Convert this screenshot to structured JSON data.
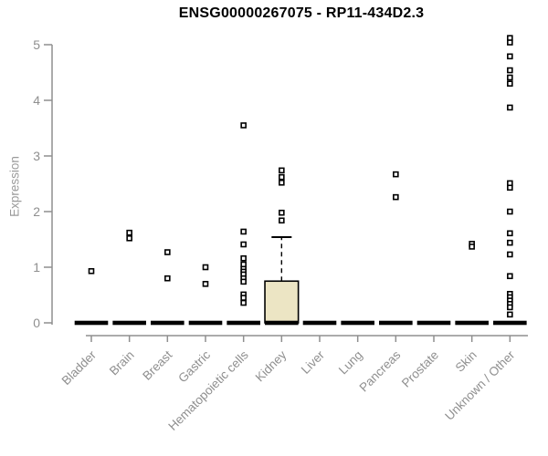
{
  "chart_data": {
    "type": "boxplot",
    "title": "ENSG00000267075 - RP11-434D2.3",
    "ylabel": "Expression",
    "xlabel": "",
    "ylim": [
      0,
      5
    ],
    "yticks": [
      0,
      1,
      2,
      3,
      4,
      5
    ],
    "grid": false,
    "legend_position": "none",
    "categories": [
      "Bladder",
      "Brain",
      "Breast",
      "Gastric",
      "Hematopoietic cells",
      "Kidney",
      "Liver",
      "Lung",
      "Pancreas",
      "Prostate",
      "Skin",
      "Unknown / Other"
    ],
    "boxes": [
      {
        "category": "Bladder",
        "q1": 0,
        "median": 0,
        "q3": 0,
        "whisker_low": 0,
        "whisker_high": 0,
        "outliers": [
          0.93
        ]
      },
      {
        "category": "Brain",
        "q1": 0,
        "median": 0,
        "q3": 0,
        "whisker_low": 0,
        "whisker_high": 0,
        "outliers": [
          1.62,
          1.52
        ]
      },
      {
        "category": "Breast",
        "q1": 0,
        "median": 0,
        "q3": 0,
        "whisker_low": 0,
        "whisker_high": 0,
        "outliers": [
          1.27,
          0.8
        ]
      },
      {
        "category": "Gastric",
        "q1": 0,
        "median": 0,
        "q3": 0,
        "whisker_low": 0,
        "whisker_high": 0,
        "outliers": [
          1.0,
          0.7
        ]
      },
      {
        "category": "Hematopoietic cells",
        "q1": 0,
        "median": 0,
        "q3": 0,
        "whisker_low": 0,
        "whisker_high": 0,
        "outliers": [
          3.55,
          1.64,
          1.41,
          1.16,
          1.05,
          0.97,
          0.92,
          0.87,
          0.8,
          0.74,
          0.51,
          0.45,
          0.36
        ]
      },
      {
        "category": "Kidney",
        "q1": 0,
        "median": 0,
        "q3": 0.75,
        "whisker_low": 0,
        "whisker_high": 1.54,
        "outliers": [
          2.74,
          2.62,
          2.52,
          1.98,
          1.84
        ]
      },
      {
        "category": "Liver",
        "q1": 0,
        "median": 0,
        "q3": 0,
        "whisker_low": 0,
        "whisker_high": 0,
        "outliers": []
      },
      {
        "category": "Lung",
        "q1": 0,
        "median": 0,
        "q3": 0,
        "whisker_low": 0,
        "whisker_high": 0,
        "outliers": []
      },
      {
        "category": "Pancreas",
        "q1": 0,
        "median": 0,
        "q3": 0,
        "whisker_low": 0,
        "whisker_high": 0,
        "outliers": [
          2.67,
          2.26
        ]
      },
      {
        "category": "Prostate",
        "q1": 0,
        "median": 0,
        "q3": 0,
        "whisker_low": 0,
        "whisker_high": 0,
        "outliers": []
      },
      {
        "category": "Skin",
        "q1": 0,
        "median": 0,
        "q3": 0,
        "whisker_low": 0,
        "whisker_high": 0,
        "outliers": [
          1.42,
          1.37
        ]
      },
      {
        "category": "Unknown / Other",
        "q1": 0,
        "median": 0,
        "q3": 0,
        "whisker_low": 0,
        "whisker_high": 0,
        "outliers": [
          5.12,
          5.04,
          4.79,
          4.54,
          4.41,
          4.3,
          3.87,
          2.51,
          2.43,
          2.0,
          1.61,
          1.44,
          1.23,
          0.84,
          0.52,
          0.46,
          0.4,
          0.34,
          0.28,
          0.15
        ]
      }
    ],
    "colors": {
      "box_fill": "#ece5c4",
      "box_stroke": "#000000",
      "marker_stroke": "#000000",
      "marker_fill": "#ffffff",
      "axis": "#8f8f8f",
      "tick_label": "#8f8f8f",
      "title": "#000000"
    }
  }
}
